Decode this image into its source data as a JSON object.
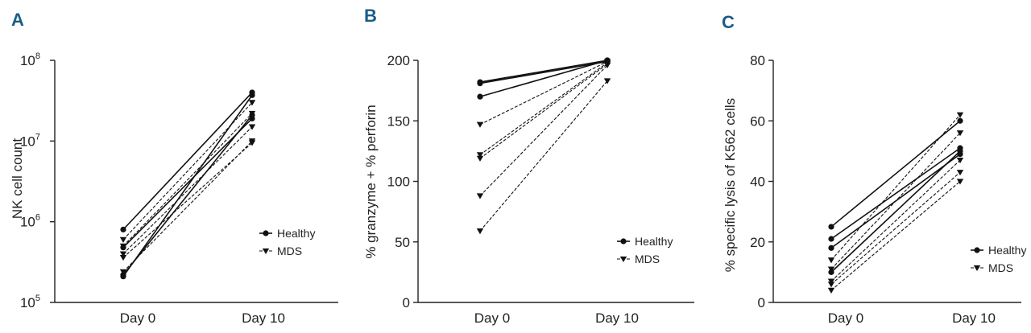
{
  "chart_data": [
    {
      "panel": "A",
      "type": "line",
      "scale": "log",
      "ylabel": "NK cell count",
      "categories": [
        "Day 0",
        "Day 10"
      ],
      "y_ticks": [
        {
          "value": 100000,
          "base": "10",
          "exp": "5"
        },
        {
          "value": 1000000,
          "base": "10",
          "exp": "6"
        },
        {
          "value": 10000000,
          "base": "10",
          "exp": "7"
        },
        {
          "value": 100000000,
          "base": "10",
          "exp": "8"
        }
      ],
      "ylim": [
        100000,
        100000000
      ],
      "legend": {
        "position": "lower-right",
        "items": [
          "Healthy",
          "MDS"
        ]
      },
      "series": [
        {
          "name": "Healthy",
          "group": "Healthy",
          "values": [
            800000,
            40000000
          ]
        },
        {
          "name": "Healthy",
          "group": "Healthy",
          "values": [
            210000,
            37000000
          ]
        },
        {
          "name": "Healthy",
          "group": "Healthy",
          "values": [
            480000,
            19000000
          ]
        },
        {
          "name": "Healthy",
          "group": "Healthy",
          "values": [
            220000,
            21000000
          ]
        },
        {
          "name": "MDS",
          "group": "MDS",
          "values": [
            600000,
            30000000
          ]
        },
        {
          "name": "MDS",
          "group": "MDS",
          "values": [
            400000,
            15000000
          ]
        },
        {
          "name": "MDS",
          "group": "MDS",
          "values": [
            240000,
            10000000
          ]
        },
        {
          "name": "MDS",
          "group": "MDS",
          "values": [
            360000,
            9500000
          ]
        },
        {
          "name": "MDS",
          "group": "MDS",
          "values": [
            500000,
            22000000
          ]
        }
      ]
    },
    {
      "panel": "B",
      "type": "line",
      "scale": "linear",
      "ylabel": "% granzyme + % perforin",
      "categories": [
        "Day 0",
        "Day 10"
      ],
      "y_ticks": [
        {
          "value": 0,
          "label": "0"
        },
        {
          "value": 50,
          "label": "50"
        },
        {
          "value": 100,
          "label": "100"
        },
        {
          "value": 150,
          "label": "150"
        },
        {
          "value": 200,
          "label": "200"
        }
      ],
      "ylim": [
        0,
        200
      ],
      "legend": {
        "position": "lower-right",
        "items": [
          "Healthy",
          "MDS"
        ]
      },
      "series": [
        {
          "name": "Healthy",
          "group": "Healthy",
          "values": [
            182,
            200
          ]
        },
        {
          "name": "Healthy",
          "group": "Healthy",
          "values": [
            181,
            199
          ]
        },
        {
          "name": "Healthy",
          "group": "Healthy",
          "values": [
            170,
            200
          ]
        },
        {
          "name": "MDS",
          "group": "MDS",
          "values": [
            147,
            199
          ]
        },
        {
          "name": "MDS",
          "group": "MDS",
          "values": [
            122,
            198
          ]
        },
        {
          "name": "MDS",
          "group": "MDS",
          "values": [
            119,
            197
          ]
        },
        {
          "name": "MDS",
          "group": "MDS",
          "values": [
            88,
            196
          ]
        },
        {
          "name": "MDS",
          "group": "MDS",
          "values": [
            59,
            183
          ]
        }
      ]
    },
    {
      "panel": "C",
      "type": "line",
      "scale": "linear",
      "ylabel": "% specific lysis of K562 cells",
      "categories": [
        "Day 0",
        "Day 10"
      ],
      "y_ticks": [
        {
          "value": 0,
          "label": "0"
        },
        {
          "value": 20,
          "label": "20"
        },
        {
          "value": 40,
          "label": "40"
        },
        {
          "value": 60,
          "label": "60"
        },
        {
          "value": 80,
          "label": "80"
        }
      ],
      "ylim": [
        0,
        80
      ],
      "legend": {
        "position": "lower-right",
        "items": [
          "Healthy",
          "MDS"
        ]
      },
      "series": [
        {
          "name": "Healthy",
          "group": "Healthy",
          "values": [
            25,
            60
          ]
        },
        {
          "name": "Healthy",
          "group": "Healthy",
          "values": [
            21,
            51
          ]
        },
        {
          "name": "Healthy",
          "group": "Healthy",
          "values": [
            18,
            49
          ]
        },
        {
          "name": "Healthy",
          "group": "Healthy",
          "values": [
            10,
            50
          ]
        },
        {
          "name": "MDS",
          "group": "MDS",
          "values": [
            14,
            62
          ]
        },
        {
          "name": "MDS",
          "group": "MDS",
          "values": [
            11,
            56
          ]
        },
        {
          "name": "MDS",
          "group": "MDS",
          "values": [
            7,
            47
          ]
        },
        {
          "name": "MDS",
          "group": "MDS",
          "values": [
            6,
            43
          ]
        },
        {
          "name": "MDS",
          "group": "MDS",
          "values": [
            4,
            40
          ]
        }
      ]
    }
  ]
}
